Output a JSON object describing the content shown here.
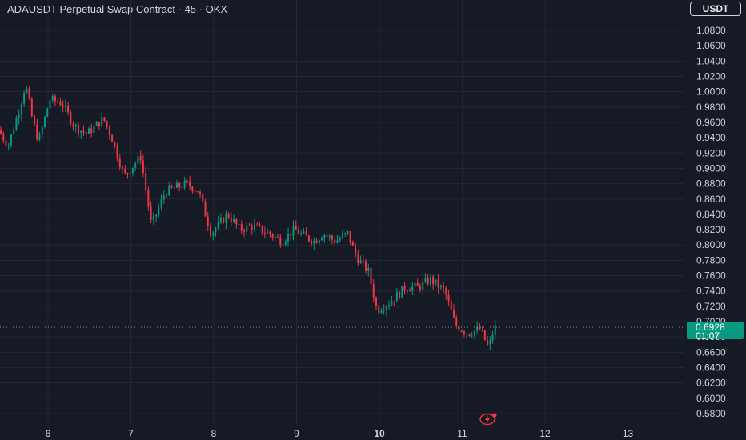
{
  "header": {
    "title": "ADAUSDT Perpetual Swap Contract · 45 · OKX",
    "currency": "USDT"
  },
  "price_label": {
    "price": "0.6928",
    "countdown": "01:07",
    "color": "#089981"
  },
  "colors": {
    "background": "#161a25",
    "grid": "#232736",
    "up": "#089981",
    "down": "#f23645",
    "text": "#d1d4dc"
  },
  "icons": {
    "flash": "lightning-icon"
  },
  "chart_data": {
    "type": "candlestick",
    "title": "ADAUSDT Perpetual Swap Contract · 45 · OKX",
    "y_axis": {
      "ticks": [
        "1.0800",
        "1.0600",
        "1.0400",
        "1.0200",
        "1.0000",
        "0.9800",
        "0.9600",
        "0.9400",
        "0.9200",
        "0.9000",
        "0.8800",
        "0.8600",
        "0.8400",
        "0.8200",
        "0.8000",
        "0.7800",
        "0.7600",
        "0.7400",
        "0.7200",
        "0.7000",
        "0.6800",
        "0.6600",
        "0.6400",
        "0.6200",
        "0.6000",
        "0.5800"
      ],
      "range": [
        0.565,
        1.105
      ],
      "side": "right"
    },
    "x_axis": {
      "ticks": [
        "6",
        "7",
        "8",
        "9",
        "10",
        "11",
        "12",
        "13"
      ],
      "bold_ticks": [
        "10"
      ],
      "range_days": [
        5.45,
        13.9
      ]
    },
    "grid": true,
    "last_price": 0.6928,
    "price_path": [
      [
        5.43,
        0.95
      ],
      [
        5.55,
        0.93
      ],
      [
        5.68,
        0.975
      ],
      [
        5.76,
        1.01
      ],
      [
        5.85,
        0.96
      ],
      [
        5.92,
        0.935
      ],
      [
        6.05,
        0.99
      ],
      [
        6.2,
        0.985
      ],
      [
        6.35,
        0.955
      ],
      [
        6.5,
        0.945
      ],
      [
        6.7,
        0.965
      ],
      [
        6.8,
        0.94
      ],
      [
        6.95,
        0.89
      ],
      [
        7.15,
        0.915
      ],
      [
        7.28,
        0.825
      ],
      [
        7.45,
        0.87
      ],
      [
        7.7,
        0.88
      ],
      [
        7.85,
        0.87
      ],
      [
        8.0,
        0.815
      ],
      [
        8.2,
        0.84
      ],
      [
        8.35,
        0.82
      ],
      [
        8.5,
        0.825
      ],
      [
        8.7,
        0.815
      ],
      [
        8.85,
        0.805
      ],
      [
        9.0,
        0.82
      ],
      [
        9.15,
        0.81
      ],
      [
        9.25,
        0.805
      ],
      [
        9.35,
        0.815
      ],
      [
        9.5,
        0.805
      ],
      [
        9.65,
        0.815
      ],
      [
        9.75,
        0.785
      ],
      [
        9.9,
        0.765
      ],
      [
        10.0,
        0.715
      ],
      [
        10.15,
        0.725
      ],
      [
        10.35,
        0.745
      ],
      [
        10.5,
        0.745
      ],
      [
        10.65,
        0.755
      ],
      [
        10.82,
        0.74
      ],
      [
        10.95,
        0.695
      ],
      [
        11.1,
        0.685
      ],
      [
        11.25,
        0.69
      ],
      [
        11.35,
        0.665
      ],
      [
        11.42,
        0.6928
      ]
    ]
  }
}
